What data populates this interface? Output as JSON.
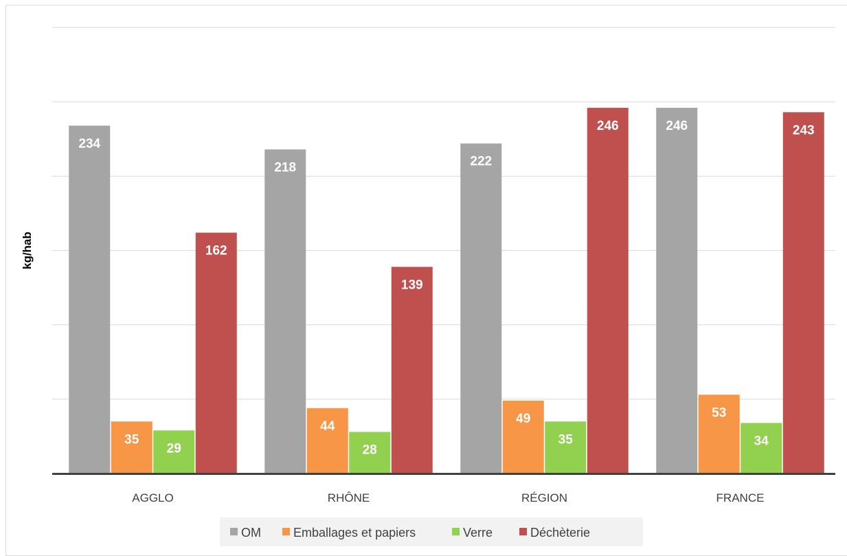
{
  "chart_data": {
    "type": "bar",
    "title": "",
    "xlabel": "",
    "ylabel": "kg/hab",
    "categories": [
      "AGGLO",
      "RHÔNE",
      "RÉGION",
      "FRANCE"
    ],
    "series": [
      {
        "name": "OM",
        "color": "#a5a5a5",
        "values": [
          234,
          218,
          222,
          246
        ]
      },
      {
        "name": "Emballages et papiers",
        "color": "#f79646",
        "values": [
          35,
          44,
          49,
          53
        ]
      },
      {
        "name": "Verre",
        "color": "#92d050",
        "values": [
          29,
          28,
          35,
          34
        ]
      },
      {
        "name": "Déchèterie",
        "color": "#c0504d",
        "values": [
          162,
          139,
          246,
          243
        ]
      }
    ],
    "ylim": [
      0,
      300
    ],
    "grid": true,
    "data_labels": true,
    "legend_position": "bottom"
  }
}
